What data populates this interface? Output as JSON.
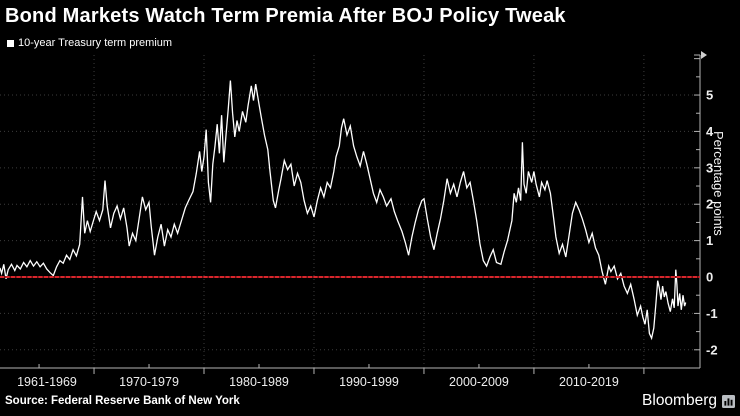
{
  "title": "Bond Markets Watch Term Premia After BOJ Policy Tweak",
  "legend": {
    "label": "10-year Treasury term premium"
  },
  "source": "Source: Federal Reserve Bank of New York",
  "brand": "Bloomberg",
  "colors": {
    "background": "#000000",
    "line": "#ffffff",
    "zero_line": "#d8262c",
    "grid": "#3c3c3c",
    "axis": "#b3b3b3",
    "tick_label": "#ededed"
  },
  "chart_data": {
    "type": "line",
    "title": "Bond Markets Watch Term Premia After BOJ Policy Tweak",
    "xlabel": "",
    "ylabel": "Percentage points",
    "xlim": [
      1961.45,
      2025.1
    ],
    "ylim": [
      -2.5,
      6.1
    ],
    "grid": "dotted",
    "legend_position": "top-left",
    "x_tick_labels": [
      "1961-1969",
      "1970-1979",
      "1980-1989",
      "1990-1999",
      "2000-2009",
      "2010-2019"
    ],
    "x_gridline_years": [
      1970,
      1980,
      1990,
      2000,
      2010,
      2020
    ],
    "x_minor_tick_years": [
      1965,
      1975,
      1985,
      1995,
      2005,
      2015
    ],
    "y_tick_values": [
      5,
      4,
      3,
      2,
      1,
      0,
      -1,
      -2
    ],
    "y_gridline_values": [
      5,
      4,
      3,
      2,
      1,
      -1,
      -2
    ],
    "y_minor_tick_step": 0.5,
    "zero_line": {
      "value": 0,
      "color": "#d8262c"
    },
    "series": [
      {
        "name": "10-year Treasury term premium",
        "color": "#ffffff",
        "points": [
          [
            1961.45,
            0.25
          ],
          [
            1961.6,
            0.1
          ],
          [
            1961.8,
            0.35
          ],
          [
            1962.0,
            -0.05
          ],
          [
            1962.2,
            0.2
          ],
          [
            1962.5,
            0.35
          ],
          [
            1962.8,
            0.18
          ],
          [
            1963.0,
            0.32
          ],
          [
            1963.3,
            0.22
          ],
          [
            1963.6,
            0.4
          ],
          [
            1963.9,
            0.28
          ],
          [
            1964.2,
            0.45
          ],
          [
            1964.5,
            0.3
          ],
          [
            1964.8,
            0.42
          ],
          [
            1965.1,
            0.28
          ],
          [
            1965.4,
            0.38
          ],
          [
            1965.7,
            0.22
          ],
          [
            1966.0,
            0.12
          ],
          [
            1966.3,
            0.04
          ],
          [
            1966.6,
            0.28
          ],
          [
            1966.9,
            0.45
          ],
          [
            1967.2,
            0.38
          ],
          [
            1967.5,
            0.6
          ],
          [
            1967.8,
            0.48
          ],
          [
            1968.1,
            0.75
          ],
          [
            1968.4,
            0.58
          ],
          [
            1968.7,
            0.9
          ],
          [
            1968.95,
            2.2
          ],
          [
            1969.15,
            1.2
          ],
          [
            1969.4,
            1.55
          ],
          [
            1969.65,
            1.25
          ],
          [
            1969.9,
            1.5
          ],
          [
            1970.2,
            1.8
          ],
          [
            1970.5,
            1.55
          ],
          [
            1970.8,
            1.85
          ],
          [
            1971.0,
            2.65
          ],
          [
            1971.2,
            1.95
          ],
          [
            1971.5,
            1.35
          ],
          [
            1971.8,
            1.75
          ],
          [
            1972.1,
            1.95
          ],
          [
            1972.4,
            1.6
          ],
          [
            1972.7,
            1.9
          ],
          [
            1973.0,
            1.35
          ],
          [
            1973.2,
            0.85
          ],
          [
            1973.5,
            1.2
          ],
          [
            1973.8,
            1.0
          ],
          [
            1974.1,
            1.6
          ],
          [
            1974.4,
            2.2
          ],
          [
            1974.7,
            1.85
          ],
          [
            1975.0,
            2.05
          ],
          [
            1975.2,
            1.4
          ],
          [
            1975.5,
            0.6
          ],
          [
            1975.8,
            1.1
          ],
          [
            1976.1,
            1.45
          ],
          [
            1976.4,
            0.85
          ],
          [
            1976.7,
            1.3
          ],
          [
            1977.0,
            1.1
          ],
          [
            1977.3,
            1.45
          ],
          [
            1977.6,
            1.2
          ],
          [
            1978.0,
            1.6
          ],
          [
            1978.3,
            1.9
          ],
          [
            1978.6,
            2.1
          ],
          [
            1979.0,
            2.35
          ],
          [
            1979.3,
            2.85
          ],
          [
            1979.6,
            3.45
          ],
          [
            1979.8,
            2.9
          ],
          [
            1980.0,
            3.3
          ],
          [
            1980.2,
            4.05
          ],
          [
            1980.4,
            2.6
          ],
          [
            1980.6,
            2.05
          ],
          [
            1980.8,
            3.1
          ],
          [
            1981.0,
            3.6
          ],
          [
            1981.2,
            4.2
          ],
          [
            1981.4,
            3.4
          ],
          [
            1981.6,
            4.45
          ],
          [
            1981.8,
            3.15
          ],
          [
            1982.0,
            3.9
          ],
          [
            1982.2,
            4.6
          ],
          [
            1982.4,
            5.4
          ],
          [
            1982.6,
            4.5
          ],
          [
            1982.8,
            3.85
          ],
          [
            1983.0,
            4.3
          ],
          [
            1983.2,
            4.0
          ],
          [
            1983.5,
            4.55
          ],
          [
            1983.8,
            4.25
          ],
          [
            1984.0,
            4.7
          ],
          [
            1984.3,
            5.25
          ],
          [
            1984.5,
            4.85
          ],
          [
            1984.7,
            5.3
          ],
          [
            1985.0,
            4.75
          ],
          [
            1985.2,
            4.4
          ],
          [
            1985.5,
            3.9
          ],
          [
            1985.8,
            3.5
          ],
          [
            1986.0,
            2.9
          ],
          [
            1986.3,
            2.1
          ],
          [
            1986.5,
            1.9
          ],
          [
            1986.8,
            2.4
          ],
          [
            1987.0,
            2.7
          ],
          [
            1987.3,
            3.2
          ],
          [
            1987.6,
            2.95
          ],
          [
            1987.9,
            3.1
          ],
          [
            1988.2,
            2.5
          ],
          [
            1988.5,
            2.85
          ],
          [
            1988.8,
            2.6
          ],
          [
            1989.1,
            2.1
          ],
          [
            1989.4,
            1.75
          ],
          [
            1989.7,
            1.95
          ],
          [
            1990.0,
            1.65
          ],
          [
            1990.3,
            2.1
          ],
          [
            1990.6,
            2.45
          ],
          [
            1990.9,
            2.2
          ],
          [
            1991.2,
            2.6
          ],
          [
            1991.5,
            2.45
          ],
          [
            1991.8,
            2.9
          ],
          [
            1992.0,
            3.3
          ],
          [
            1992.3,
            3.6
          ],
          [
            1992.5,
            4.1
          ],
          [
            1992.7,
            4.35
          ],
          [
            1993.0,
            3.9
          ],
          [
            1993.3,
            4.15
          ],
          [
            1993.6,
            3.6
          ],
          [
            1993.9,
            3.3
          ],
          [
            1994.2,
            3.05
          ],
          [
            1994.5,
            3.45
          ],
          [
            1994.8,
            3.1
          ],
          [
            1995.1,
            2.7
          ],
          [
            1995.4,
            2.3
          ],
          [
            1995.7,
            2.05
          ],
          [
            1996.0,
            2.4
          ],
          [
            1996.3,
            2.2
          ],
          [
            1996.6,
            1.95
          ],
          [
            1997.0,
            2.15
          ],
          [
            1997.3,
            1.8
          ],
          [
            1997.6,
            1.55
          ],
          [
            1998.0,
            1.25
          ],
          [
            1998.3,
            0.95
          ],
          [
            1998.6,
            0.6
          ],
          [
            1998.9,
            1.1
          ],
          [
            1999.2,
            1.5
          ],
          [
            1999.5,
            1.85
          ],
          [
            1999.8,
            2.1
          ],
          [
            2000.0,
            2.15
          ],
          [
            2000.3,
            1.6
          ],
          [
            2000.6,
            1.1
          ],
          [
            2000.9,
            0.75
          ],
          [
            2001.2,
            1.2
          ],
          [
            2001.5,
            1.6
          ],
          [
            2001.8,
            2.1
          ],
          [
            2002.1,
            2.7
          ],
          [
            2002.4,
            2.3
          ],
          [
            2002.7,
            2.55
          ],
          [
            2003.0,
            2.2
          ],
          [
            2003.3,
            2.6
          ],
          [
            2003.6,
            2.9
          ],
          [
            2003.9,
            2.45
          ],
          [
            2004.2,
            2.6
          ],
          [
            2004.5,
            2.1
          ],
          [
            2004.8,
            1.55
          ],
          [
            2005.1,
            0.9
          ],
          [
            2005.4,
            0.45
          ],
          [
            2005.7,
            0.3
          ],
          [
            2006.0,
            0.55
          ],
          [
            2006.3,
            0.75
          ],
          [
            2006.6,
            0.4
          ],
          [
            2007.0,
            0.35
          ],
          [
            2007.3,
            0.7
          ],
          [
            2007.6,
            1.0
          ],
          [
            2008.0,
            1.55
          ],
          [
            2008.2,
            2.3
          ],
          [
            2008.4,
            2.05
          ],
          [
            2008.6,
            2.45
          ],
          [
            2008.8,
            2.1
          ],
          [
            2008.95,
            3.7
          ],
          [
            2009.1,
            2.55
          ],
          [
            2009.3,
            2.3
          ],
          [
            2009.5,
            2.9
          ],
          [
            2009.8,
            2.6
          ],
          [
            2010.0,
            2.9
          ],
          [
            2010.2,
            2.55
          ],
          [
            2010.5,
            2.2
          ],
          [
            2010.7,
            2.6
          ],
          [
            2011.0,
            2.4
          ],
          [
            2011.2,
            2.65
          ],
          [
            2011.5,
            2.3
          ],
          [
            2011.8,
            1.6
          ],
          [
            2012.0,
            1.1
          ],
          [
            2012.3,
            0.65
          ],
          [
            2012.6,
            0.9
          ],
          [
            2012.9,
            0.55
          ],
          [
            2013.2,
            1.15
          ],
          [
            2013.5,
            1.75
          ],
          [
            2013.8,
            2.05
          ],
          [
            2014.1,
            1.85
          ],
          [
            2014.4,
            1.6
          ],
          [
            2014.7,
            1.3
          ],
          [
            2015.0,
            0.95
          ],
          [
            2015.3,
            1.2
          ],
          [
            2015.6,
            0.8
          ],
          [
            2015.9,
            0.6
          ],
          [
            2016.2,
            0.15
          ],
          [
            2016.5,
            -0.2
          ],
          [
            2016.8,
            0.3
          ],
          [
            2017.0,
            0.15
          ],
          [
            2017.3,
            0.3
          ],
          [
            2017.6,
            -0.05
          ],
          [
            2017.9,
            0.1
          ],
          [
            2018.2,
            -0.25
          ],
          [
            2018.5,
            -0.45
          ],
          [
            2018.8,
            -0.2
          ],
          [
            2019.1,
            -0.6
          ],
          [
            2019.4,
            -1.05
          ],
          [
            2019.7,
            -0.8
          ],
          [
            2019.9,
            -1.1
          ],
          [
            2020.1,
            -1.3
          ],
          [
            2020.3,
            -0.9
          ],
          [
            2020.5,
            -1.55
          ],
          [
            2020.7,
            -1.68
          ],
          [
            2020.9,
            -1.4
          ],
          [
            2021.1,
            -0.7
          ],
          [
            2021.25,
            -0.1
          ],
          [
            2021.4,
            -0.3
          ],
          [
            2021.55,
            -0.62
          ],
          [
            2021.7,
            -0.25
          ],
          [
            2021.85,
            -0.55
          ],
          [
            2022.0,
            -0.4
          ],
          [
            2022.2,
            -0.72
          ],
          [
            2022.4,
            -0.95
          ],
          [
            2022.6,
            -0.6
          ],
          [
            2022.75,
            -0.85
          ],
          [
            2022.9,
            0.2
          ],
          [
            2023.0,
            -0.2
          ],
          [
            2023.1,
            -0.8
          ],
          [
            2023.25,
            -0.45
          ],
          [
            2023.4,
            -0.9
          ],
          [
            2023.55,
            -0.5
          ],
          [
            2023.7,
            -0.8
          ],
          [
            2023.8,
            -0.7
          ]
        ]
      }
    ]
  }
}
